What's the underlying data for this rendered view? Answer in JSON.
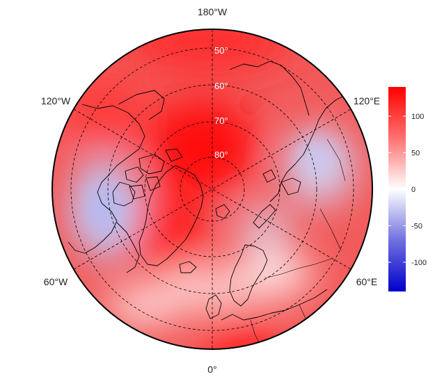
{
  "map": {
    "projection": "north-polar-stereographic",
    "lon_labels": {
      "top": "180°W",
      "bottom": "0°",
      "upper_left": "120°W",
      "upper_right": "120°E",
      "lower_left": "60°W",
      "lower_right": "60°E"
    },
    "lat_labels": [
      "50°",
      "60°",
      "70°",
      "80°"
    ],
    "colorbar": {
      "min": -140,
      "max": 140,
      "ticks": [
        "100",
        "50",
        "0",
        "-50",
        "-100"
      ],
      "tick_values": [
        100,
        50,
        0,
        -50,
        -100
      ],
      "colors": {
        "high": "#ff0000",
        "mid": "#ffffff",
        "low": "#0000cc"
      }
    },
    "colors": {
      "grid": "#000000",
      "coast": "#000000"
    }
  }
}
